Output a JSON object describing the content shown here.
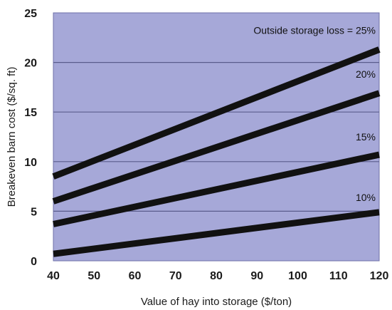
{
  "chart_data": {
    "type": "line",
    "title": "",
    "xlabel": "Value of hay into storage ($/ton)",
    "ylabel": "Breakeven barn cost ($/sq. ft)",
    "xlim": [
      40,
      120
    ],
    "ylim": [
      0,
      25
    ],
    "x_ticks": [
      "40",
      "50",
      "60",
      "70",
      "80",
      "90",
      "100",
      "110",
      "120"
    ],
    "y_ticks": [
      "0",
      "5",
      "10",
      "15",
      "20",
      "25"
    ],
    "grid": "horizontal",
    "background_color": "#a6a8d8",
    "line_color": "#111111",
    "x": [
      40,
      120
    ],
    "series": [
      {
        "name": "Outside storage loss = 25%",
        "values": [
          8.5,
          21.3
        ]
      },
      {
        "name": "20%",
        "values": [
          6.0,
          16.9
        ]
      },
      {
        "name": "15%",
        "values": [
          3.7,
          10.7
        ]
      },
      {
        "name": "10%",
        "values": [
          0.7,
          4.9
        ]
      }
    ]
  }
}
